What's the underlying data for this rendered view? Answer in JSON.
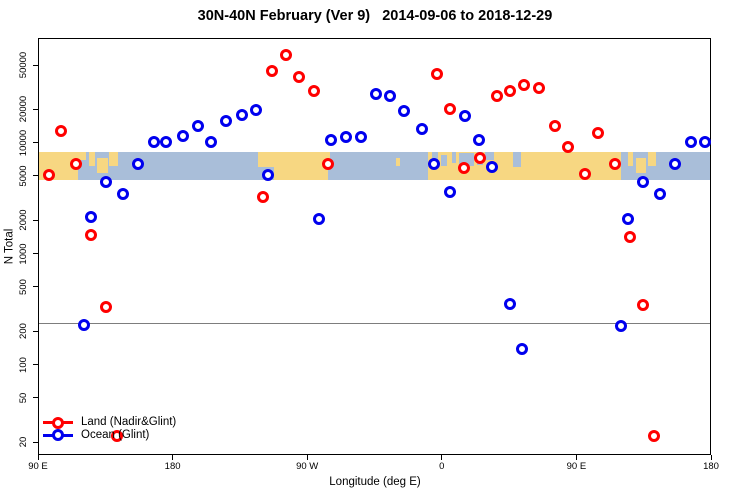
{
  "title": "30N-40N February (Ver 9)   2014-09-06 to 2018-12-29",
  "chart_data": {
    "type": "scatter",
    "title": "30N-40N February (Ver 9)   2014-09-06 to 2018-12-29",
    "xlabel": "Longitude (deg E)",
    "ylabel": "N Total",
    "y_scale": "log",
    "ylim": [
      15.3,
      87600
    ],
    "xlim": [
      90,
      540
    ],
    "grid": false,
    "legend_position": "bottom-left",
    "y_ticks": [
      20,
      50,
      100,
      200,
      500,
      1000,
      2000,
      5000,
      10000,
      20000,
      50000
    ],
    "x_ticks": [
      {
        "lon": 90,
        "label": "90 E"
      },
      {
        "lon": 180,
        "label": "180"
      },
      {
        "lon": 270,
        "label": "90 W"
      },
      {
        "lon": 360,
        "label": "0"
      },
      {
        "lon": 450,
        "label": "90 E"
      },
      {
        "lon": 540,
        "label": "180"
      }
    ],
    "reference_line_value": 240,
    "map_band": {
      "description": "world land/ocean strip for 30N-40N drawn across plot",
      "top_value": 8400,
      "bottom_value": 4700,
      "land_segments": [
        {
          "from": 90,
          "to": 121.5,
          "top": 0,
          "bot": 0.55
        },
        {
          "from": 90,
          "to": 116,
          "top": 0.55,
          "bot": 1
        },
        {
          "from": 123.5,
          "to": 127.5,
          "top": 0,
          "bot": 0.5
        },
        {
          "from": 129,
          "to": 136,
          "top": 0.2,
          "bot": 0.75
        },
        {
          "from": 137,
          "to": 142.5,
          "top": 0,
          "bot": 0.5
        },
        {
          "from": 236.5,
          "to": 284.5,
          "top": 0,
          "bot": 0.55
        },
        {
          "from": 247,
          "to": 283,
          "top": 0.55,
          "bot": 1
        },
        {
          "from": 329,
          "to": 331.5,
          "top": 0.2,
          "bot": 0.5
        },
        {
          "from": 350,
          "to": 479,
          "top": 0,
          "bot": 1
        },
        {
          "from": 483.5,
          "to": 487.5,
          "top": 0,
          "bot": 0.5
        },
        {
          "from": 489,
          "to": 496,
          "top": 0.2,
          "bot": 0.75
        },
        {
          "from": 497,
          "to": 502.5,
          "top": 0,
          "bot": 0.5
        }
      ],
      "ocean_notches": [
        {
          "from": 353,
          "to": 357,
          "top": 0,
          "bot": 0.45
        },
        {
          "from": 359,
          "to": 363,
          "top": 0.1,
          "bot": 0.5
        },
        {
          "from": 366,
          "to": 369,
          "top": 0,
          "bot": 0.4
        },
        {
          "from": 371,
          "to": 381,
          "top": 0.05,
          "bot": 0.5
        },
        {
          "from": 383,
          "to": 387,
          "top": 0,
          "bot": 0.45
        },
        {
          "from": 388,
          "to": 394,
          "top": 0,
          "bot": 0.3
        },
        {
          "from": 407,
          "to": 412,
          "top": 0,
          "bot": 0.55
        },
        {
          "from": 118,
          "to": 121.5,
          "top": 0.3,
          "bot": 0.55
        }
      ]
    },
    "series": [
      {
        "name": "Land (Nadir&Glint)",
        "color": "#ff0000",
        "points": [
          [
            97,
            5200
          ],
          [
            105,
            13000
          ],
          [
            115,
            6500
          ],
          [
            125,
            1500
          ],
          [
            135,
            340
          ],
          [
            142,
            23
          ],
          [
            240,
            3300
          ],
          [
            246,
            45000
          ],
          [
            255,
            63000
          ],
          [
            264,
            40000
          ],
          [
            274,
            30000
          ],
          [
            283,
            6500
          ],
          [
            356,
            42000
          ],
          [
            365,
            20500
          ],
          [
            374,
            6000
          ],
          [
            385,
            7400
          ],
          [
            396,
            27000
          ],
          [
            405,
            30000
          ],
          [
            414,
            34000
          ],
          [
            424,
            32000
          ],
          [
            435,
            14300
          ],
          [
            444,
            9300
          ],
          [
            455,
            5300
          ],
          [
            464,
            12500
          ],
          [
            475,
            6500
          ],
          [
            485,
            1450
          ],
          [
            494,
            350
          ],
          [
            501,
            23
          ]
        ]
      },
      {
        "name": "Ocean (Glint)",
        "color": "#0000ee",
        "points": [
          [
            120,
            230
          ],
          [
            125,
            2200
          ],
          [
            135,
            4500
          ],
          [
            146,
            3500
          ],
          [
            156,
            6500
          ],
          [
            167,
            10400
          ],
          [
            175,
            10300
          ],
          [
            186,
            11800
          ],
          [
            196,
            14300
          ],
          [
            205,
            10400
          ],
          [
            215,
            16000
          ],
          [
            226,
            18000
          ],
          [
            235,
            20000
          ],
          [
            243,
            5200
          ],
          [
            277,
            2100
          ],
          [
            285,
            10800
          ],
          [
            295,
            11400
          ],
          [
            305,
            11500
          ],
          [
            315,
            28000
          ],
          [
            325,
            27000
          ],
          [
            334,
            19800
          ],
          [
            346,
            13500
          ],
          [
            354,
            6600
          ],
          [
            365,
            3700
          ],
          [
            375,
            17600
          ],
          [
            384,
            10800
          ],
          [
            393,
            6200
          ],
          [
            405,
            360
          ],
          [
            413,
            140
          ],
          [
            479,
            225
          ],
          [
            484,
            2100
          ],
          [
            494,
            4500
          ],
          [
            505,
            3500
          ],
          [
            515,
            6600
          ],
          [
            526,
            10400
          ],
          [
            535,
            10400
          ]
        ]
      }
    ],
    "colors": {
      "land_fill": "#f7d782",
      "ocean_fill": "#a9bed9",
      "reference_line": "#7d7d7d",
      "axis": "#000000"
    }
  },
  "legend": {
    "items": [
      {
        "label": "Land (Nadir&Glint)",
        "color": "#ff0000"
      },
      {
        "label": "Ocean (Glint)",
        "color": "#0000ee"
      }
    ]
  }
}
